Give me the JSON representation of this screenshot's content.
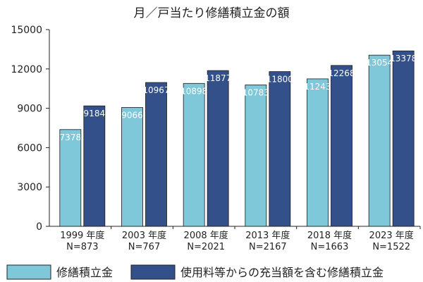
{
  "chart_data": {
    "type": "bar",
    "title": "月／戸当たり修繕積立金の額",
    "categories": [
      {
        "year": "1999 年度",
        "n": "N=873"
      },
      {
        "year": "2003 年度",
        "n": "N=767"
      },
      {
        "year": "2008 年度",
        "n": "N=2021"
      },
      {
        "year": "2013 年度",
        "n": "N=2167"
      },
      {
        "year": "2018 年度",
        "n": "N=1663"
      },
      {
        "year": "2023 年度",
        "n": "N=1522"
      }
    ],
    "series": [
      {
        "name": "修繕積立金",
        "color": "#7ec8da",
        "values": [
          7378,
          9066,
          10898,
          10783,
          11243,
          13054
        ]
      },
      {
        "name": "使用料等からの充当額を含む修繕積立金",
        "color": "#34508a",
        "values": [
          9184,
          10967,
          11877,
          11800,
          12268,
          13378
        ]
      }
    ],
    "ylim": [
      0,
      15000
    ],
    "yticks": [
      "0",
      "3000",
      "6000",
      "9000",
      "12000",
      "15000"
    ],
    "grid": false,
    "legend": "bottom"
  }
}
